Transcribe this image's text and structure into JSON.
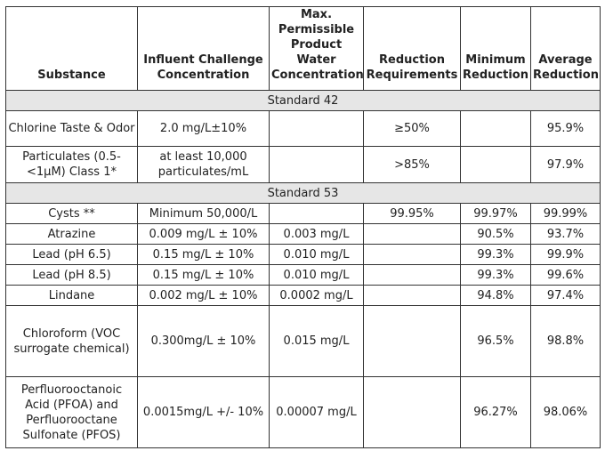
{
  "headers": [
    "Substance",
    "Influent Challenge Concentration",
    "Max. Permissible Product Water Concentration",
    "Reduction Requirements",
    "Minimum Reduction",
    "Average Reduction"
  ],
  "sections": [
    {
      "title": "Standard 42",
      "rows": [
        {
          "substance": "Chlorine Taste & Odor",
          "influent": "2.0 mg/L±10%",
          "max": "",
          "requirement": "≥50%",
          "minimum": "",
          "average": "95.9%"
        },
        {
          "substance": "Particulates (0.5-<1μM) Class 1*",
          "influent": "at least 10,000 particulates/mL",
          "max": "",
          "requirement": ">85%",
          "minimum": "",
          "average": "97.9%"
        }
      ]
    },
    {
      "title": "Standard 53",
      "rows": [
        {
          "substance": "Cysts **",
          "influent": "Minimum 50,000/L",
          "max": "",
          "requirement": "99.95%",
          "minimum": "99.97%",
          "average": "99.99%"
        },
        {
          "substance": "Atrazine",
          "influent": "0.009 mg/L ± 10%",
          "max": "0.003 mg/L",
          "requirement": "",
          "minimum": "90.5%",
          "average": "93.7%"
        },
        {
          "substance": "Lead (pH 6.5)",
          "influent": "0.15 mg/L ± 10%",
          "max": "0.010 mg/L",
          "requirement": "",
          "minimum": "99.3%",
          "average": "99.9%"
        },
        {
          "substance": "Lead (pH 8.5)",
          "influent": "0.15 mg/L ± 10%",
          "max": "0.010 mg/L",
          "requirement": "",
          "minimum": "99.3%",
          "average": "99.6%"
        },
        {
          "substance": "Lindane",
          "influent": "0.002 mg/L ± 10%",
          "max": "0.0002 mg/L",
          "requirement": "",
          "minimum": "94.8%",
          "average": "97.4%"
        },
        {
          "substance": "Chloroform (VOC surrogate chemical)",
          "influent": "0.300mg/L ± 10%",
          "max": "0.015 mg/L",
          "requirement": "",
          "minimum": "96.5%",
          "average": "98.8%"
        },
        {
          "substance": "Perfluorooctanoic Acid (PFOA) and Perfluorooctane Sulfonate (PFOS)",
          "influent": "0.0015mg/L +/- 10%",
          "max": "0.00007 mg/L",
          "requirement": "",
          "minimum": "96.27%",
          "average": "98.06%"
        }
      ]
    }
  ]
}
